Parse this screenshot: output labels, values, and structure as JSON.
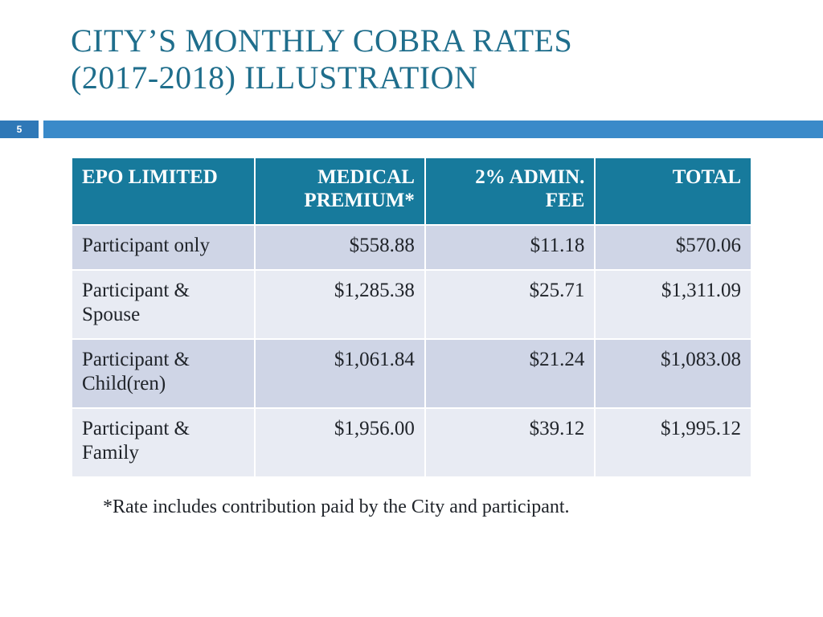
{
  "title_line1": "CITY’S MONTHLY COBRA RATES",
  "title_line2": "(2017-2018) ILLUSTRATION",
  "page_number": "5",
  "colors": {
    "title_color": "#1f6e8c",
    "page_box_bg": "#2f78b7",
    "accent_bar_bg": "#3a8ac9",
    "header_bg": "#177a9c",
    "header_fg": "#ffffff",
    "band_a_bg": "#cfd5e6",
    "band_b_bg": "#e8ebf3",
    "text_color": "#20242a",
    "background": "#ffffff"
  },
  "typography": {
    "title_fontsize": 40,
    "table_fontsize": 25,
    "footnote_fontsize": 24,
    "font_family": "Georgia, serif"
  },
  "table": {
    "type": "table",
    "column_widths_pct": [
      27,
      25,
      25,
      23
    ],
    "columns": [
      {
        "label": "EPO LIMITED",
        "align": "left"
      },
      {
        "label": "MEDICAL PREMIUM*",
        "align": "right"
      },
      {
        "label": "2% ADMIN. FEE",
        "align": "right"
      },
      {
        "label": "TOTAL",
        "align": "right"
      }
    ],
    "rows": [
      {
        "band": "a",
        "cells": [
          "Participant only",
          "$558.88",
          "$11.18",
          "$570.06"
        ]
      },
      {
        "band": "b",
        "cells": [
          "Participant & Spouse",
          "$1,285.38",
          "$25.71",
          "$1,311.09"
        ]
      },
      {
        "band": "a",
        "cells": [
          "Participant & Child(ren)",
          "$1,061.84",
          "$21.24",
          "$1,083.08"
        ]
      },
      {
        "band": "b",
        "cells": [
          "Participant  & Family",
          "$1,956.00",
          "$39.12",
          "$1,995.12"
        ]
      }
    ]
  },
  "footnote": "*Rate includes contribution paid by the City and participant."
}
